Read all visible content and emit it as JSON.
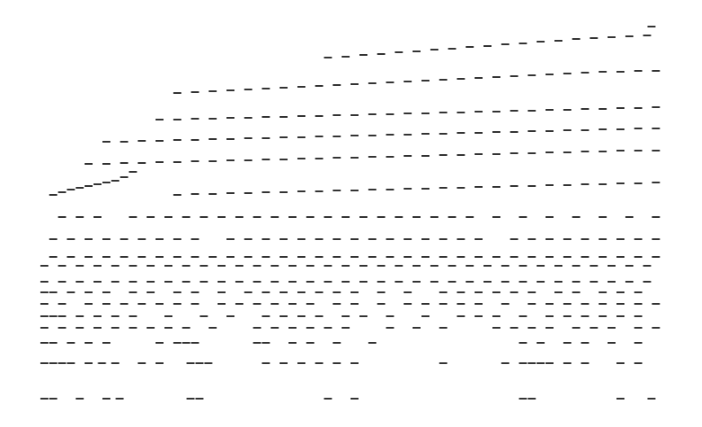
{
  "chart_data": {
    "type": "scatter",
    "color": "#000000",
    "marker": "rect",
    "grid": false,
    "tick_labels": false,
    "xlim": [
      0,
      792
    ],
    "ylim": [
      0,
      482
    ],
    "series": [
      {
        "x": [
          50,
          60,
          90,
          120,
          135,
          215,
          225,
          370,
          400,
          590,
          600,
          700,
          735
        ],
        "values": [
          32,
          32,
          32,
          32,
          32,
          32,
          32,
          32,
          32,
          32,
          32,
          32,
          32
        ]
      },
      {
        "x": [
          50,
          60,
          70,
          80,
          100,
          115,
          130,
          160,
          180,
          215,
          225,
          235,
          300,
          320,
          340,
          360,
          380,
          400,
          500,
          570,
          590,
          600,
          610,
          620,
          640,
          660,
          700,
          720
        ],
        "values": [
          72,
          72,
          72,
          72,
          72,
          72,
          72,
          72,
          72,
          72,
          72,
          72,
          72,
          72,
          72,
          72,
          72,
          72,
          72,
          72,
          72,
          72,
          72,
          72,
          72,
          72,
          72,
          72
        ]
      },
      {
        "x": [
          50,
          60,
          80,
          100,
          120,
          180,
          200,
          210,
          220,
          290,
          300,
          330,
          350,
          380,
          420,
          590,
          610,
          640,
          660,
          690,
          720
        ],
        "values": [
          95,
          95,
          95,
          95,
          95,
          95,
          95,
          95,
          95,
          95,
          95,
          95,
          95,
          95,
          95,
          95,
          95,
          95,
          95,
          95,
          95
        ]
      },
      {
        "x": [
          50,
          70,
          90,
          110,
          130,
          150,
          170,
          190,
          210,
          240,
          290,
          310,
          330,
          350,
          370,
          390,
          440,
          470,
          500,
          560,
          580,
          600,
          620,
          650,
          670,
          690,
          720,
          740
        ],
        "values": [
          112,
          112,
          112,
          112,
          112,
          112,
          112,
          112,
          112,
          112,
          112,
          112,
          112,
          112,
          112,
          112,
          112,
          112,
          112,
          112,
          112,
          112,
          112,
          112,
          112,
          112,
          112,
          112
        ]
      },
      {
        "x": [
          50,
          60,
          70,
          90,
          110,
          130,
          150,
          190,
          230,
          260,
          300,
          320,
          340,
          360,
          390,
          410,
          440,
          480,
          520,
          540,
          560,
          590,
          620,
          640,
          660,
          680,
          700,
          720
        ],
        "values": [
          125,
          125,
          125,
          125,
          125,
          125,
          125,
          125,
          125,
          125,
          125,
          125,
          125,
          125,
          125,
          125,
          125,
          125,
          125,
          125,
          125,
          125,
          125,
          125,
          125,
          125,
          125,
          125
        ]
      },
      {
        "x": [
          50,
          70,
          100,
          120,
          140,
          160,
          180,
          200,
          220,
          250,
          270,
          290,
          310,
          330,
          350,
          380,
          400,
          430,
          460,
          480,
          500,
          520,
          540,
          570,
          600,
          620,
          640,
          660,
          680,
          700,
          720,
          740
        ],
        "values": [
          139,
          139,
          139,
          139,
          139,
          139,
          139,
          139,
          139,
          139,
          139,
          139,
          139,
          139,
          139,
          139,
          139,
          139,
          139,
          139,
          139,
          139,
          139,
          139,
          139,
          139,
          139,
          139,
          139,
          139,
          139,
          139
        ]
      },
      {
        "x": [
          50,
          60,
          80,
          100,
          120,
          150,
          170,
          200,
          220,
          250,
          280,
          300,
          320,
          340,
          360,
          380,
          400,
          430,
          460,
          500,
          520,
          540,
          560,
          580,
          600,
          630,
          650,
          680,
          700,
          720
        ],
        "values": [
          152,
          152,
          152,
          152,
          152,
          152,
          152,
          152,
          152,
          152,
          152,
          152,
          152,
          152,
          152,
          152,
          152,
          152,
          152,
          152,
          152,
          152,
          152,
          152,
          152,
          152,
          152,
          152,
          152,
          152
        ]
      },
      {
        "x": [
          50,
          70,
          90,
          110,
          130,
          150,
          170,
          190,
          210,
          230,
          250,
          270,
          290,
          310,
          330,
          350,
          370,
          390,
          410,
          430,
          450,
          470,
          490,
          510,
          530,
          550,
          570,
          590,
          610,
          630,
          650,
          670,
          690,
          710,
          730
        ],
        "values": [
          164,
          164,
          164,
          164,
          164,
          164,
          164,
          164,
          164,
          164,
          164,
          164,
          164,
          164,
          164,
          164,
          164,
          164,
          164,
          164,
          164,
          164,
          164,
          164,
          164,
          164,
          164,
          164,
          164,
          164,
          164,
          164,
          164,
          164,
          164
        ]
      },
      {
        "x": [
          50,
          70,
          90,
          110,
          130,
          150,
          170,
          190,
          210,
          230,
          250,
          270,
          290,
          310,
          330,
          350,
          370,
          390,
          410,
          430,
          450,
          470,
          490,
          510,
          530,
          550,
          570,
          590,
          610,
          630,
          650,
          670,
          690,
          710,
          730
        ],
        "values": [
          182,
          182,
          182,
          182,
          182,
          182,
          182,
          182,
          182,
          182,
          182,
          182,
          182,
          182,
          182,
          182,
          182,
          182,
          182,
          182,
          182,
          182,
          182,
          182,
          182,
          182,
          182,
          182,
          182,
          182,
          182,
          182,
          182,
          182,
          182
        ]
      },
      {
        "x": [
          60,
          80,
          100,
          120,
          140,
          160,
          180,
          200,
          220,
          240,
          260,
          280,
          300,
          320,
          340,
          360,
          380,
          400,
          420,
          440,
          460,
          480,
          500,
          520,
          540,
          560,
          580,
          600,
          620,
          640,
          660,
          680,
          700,
          720,
          740
        ],
        "values": [
          192,
          192,
          192,
          192,
          192,
          192,
          192,
          192,
          192,
          192,
          192,
          192,
          192,
          192,
          192,
          192,
          192,
          192,
          192,
          192,
          192,
          192,
          192,
          192,
          192,
          192,
          192,
          192,
          192,
          192,
          192,
          192,
          192,
          192,
          192
        ]
      },
      {
        "x": [
          60,
          80,
          100,
          120,
          140,
          160,
          180,
          200,
          220,
          260,
          280,
          300,
          320,
          340,
          360,
          380,
          400,
          420,
          440,
          460,
          480,
          500,
          520,
          540,
          580,
          600,
          620,
          640,
          660,
          680,
          700,
          720,
          740
        ],
        "values": [
          212,
          212,
          212,
          212,
          212,
          212,
          212,
          212,
          212,
          212,
          212,
          212,
          212,
          212,
          212,
          212,
          212,
          212,
          212,
          212,
          212,
          212,
          212,
          212,
          212,
          212,
          212,
          212,
          212,
          212,
          212,
          212,
          212
        ]
      },
      {
        "x": [
          70,
          90,
          110,
          150,
          170,
          190,
          210,
          230,
          250,
          270,
          290,
          310,
          330,
          350,
          370,
          390,
          410,
          430,
          450,
          470,
          490,
          510,
          530,
          560,
          590,
          620,
          650,
          680,
          710,
          740
        ],
        "values": [
          237,
          237,
          237,
          237,
          237,
          237,
          237,
          237,
          237,
          237,
          237,
          237,
          237,
          237,
          237,
          237,
          237,
          237,
          237,
          237,
          237,
          237,
          237,
          237,
          237,
          237,
          237,
          237,
          237,
          237
        ]
      },
      {
        "x": [
          60,
          70,
          80,
          90,
          100,
          110,
          120,
          130,
          140,
          150
        ],
        "values": [
          262,
          265,
          268,
          270,
          272,
          274,
          276,
          278,
          282,
          288
        ]
      },
      {
        "x": [
          200,
          220,
          240,
          260,
          280,
          300,
          320,
          340,
          360,
          380,
          400,
          420,
          440,
          460,
          480,
          500,
          520,
          540,
          560,
          580,
          600,
          620,
          640,
          660,
          680,
          700,
          720,
          740
        ],
        "values": [
          262,
          263,
          263,
          264,
          264,
          265,
          265,
          266,
          266,
          267,
          267,
          268,
          268,
          269,
          269,
          270,
          270,
          271,
          271,
          272,
          272,
          273,
          273,
          274,
          274,
          275,
          275,
          276
        ]
      },
      {
        "x": [
          100,
          120,
          140,
          160,
          180,
          200,
          220,
          240,
          260,
          280,
          300,
          320,
          340,
          360,
          380,
          400,
          420,
          440,
          460,
          480,
          500,
          520,
          540,
          560,
          580,
          600,
          620,
          640,
          660,
          680,
          700,
          720,
          740
        ],
        "values": [
          297,
          297,
          298,
          298,
          299,
          299,
          300,
          300,
          301,
          301,
          302,
          302,
          303,
          303,
          304,
          304,
          305,
          305,
          306,
          306,
          307,
          307,
          308,
          308,
          309,
          309,
          310,
          310,
          311,
          311,
          312,
          312,
          312
        ]
      },
      {
        "x": [
          120,
          140,
          160,
          180,
          200,
          220,
          240,
          260,
          280,
          300,
          320,
          340,
          360,
          380,
          400,
          420,
          440,
          460,
          480,
          500,
          520,
          540,
          560,
          580,
          600,
          620,
          640,
          660,
          680,
          700,
          720,
          740
        ],
        "values": [
          322,
          322,
          323,
          323,
          324,
          324,
          325,
          325,
          326,
          326,
          327,
          327,
          328,
          328,
          329,
          329,
          330,
          330,
          331,
          331,
          332,
          332,
          333,
          333,
          334,
          334,
          335,
          335,
          336,
          336,
          337,
          337
        ]
      },
      {
        "x": [
          180,
          200,
          220,
          240,
          260,
          280,
          300,
          320,
          340,
          360,
          380,
          400,
          420,
          440,
          460,
          480,
          500,
          520,
          540,
          560,
          580,
          600,
          620,
          640,
          660,
          680,
          700,
          720,
          740
        ],
        "values": [
          347,
          347,
          348,
          348,
          349,
          349,
          350,
          350,
          351,
          351,
          352,
          352,
          353,
          353,
          354,
          354,
          355,
          355,
          356,
          356,
          357,
          357,
          358,
          358,
          359,
          359,
          360,
          360,
          361
        ]
      },
      {
        "x": [
          200,
          220,
          240,
          260,
          280,
          300,
          320,
          340,
          360,
          380,
          400,
          420,
          440,
          460,
          480,
          500,
          520,
          540,
          560,
          580,
          600,
          620,
          640,
          660,
          680,
          700,
          720,
          740
        ],
        "values": [
          377,
          378,
          379,
          380,
          381,
          382,
          383,
          384,
          385,
          386,
          387,
          388,
          389,
          390,
          391,
          392,
          393,
          394,
          395,
          396,
          397,
          398,
          399,
          400,
          401,
          401,
          402,
          402
        ]
      },
      {
        "x": [
          370,
          390,
          410,
          430,
          450,
          470,
          490,
          510,
          530,
          550,
          570,
          590,
          610,
          630,
          650,
          670,
          690,
          710,
          730
        ],
        "values": [
          417,
          418,
          420,
          421,
          423,
          424,
          426,
          427,
          429,
          430,
          432,
          433,
          435,
          436,
          438,
          439,
          440,
          441,
          442
        ]
      },
      {
        "x": [
          735
        ],
        "values": [
          452
        ]
      }
    ]
  }
}
